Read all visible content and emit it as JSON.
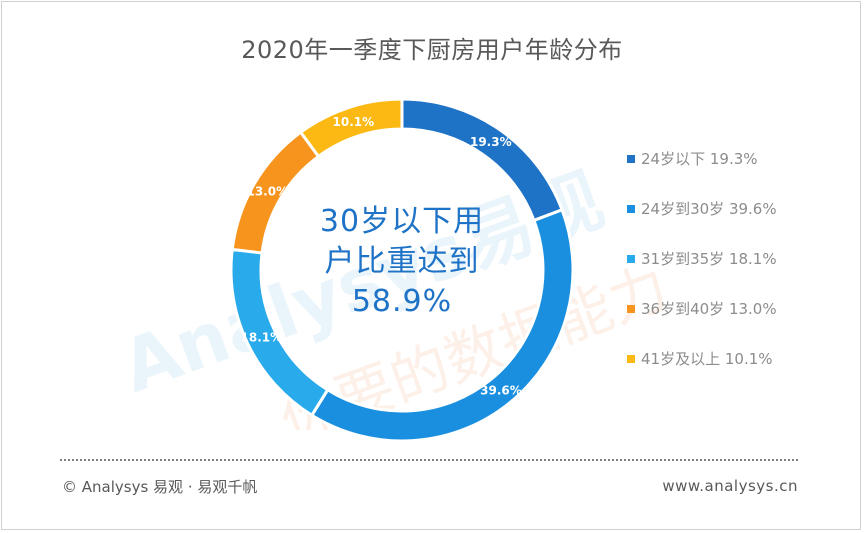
{
  "title": "2020年一季度下厨房用户年龄分布",
  "center_text": {
    "line1": "30岁以下用",
    "line2": "户比重达到",
    "line3": "58.9%"
  },
  "chart_data": {
    "type": "pie",
    "variant": "donut",
    "title": "2020年一季度下厨房用户年龄分布",
    "unit": "%",
    "categories": [
      "24岁以下",
      "24岁到30岁",
      "31岁到35岁",
      "36岁到40岁",
      "41岁及以上"
    ],
    "values": [
      19.3,
      39.6,
      18.1,
      13.0,
      10.1
    ],
    "slice_labels": [
      "19.3%",
      "39.6%",
      "18.1%",
      "13.0%",
      "10.1%"
    ],
    "legend_labels": [
      "24岁以下 19.3%",
      "24岁到30岁 39.6%",
      "31岁到35岁 18.1%",
      "36岁到40岁 13.0%",
      "41岁及以上 10.1%"
    ],
    "colors": [
      "#1f73c7",
      "#1a8fdf",
      "#28aaeb",
      "#f7941d",
      "#fdb913"
    ],
    "legend_position": "right",
    "start_angle": "top, clockwise"
  },
  "watermark": {
    "logo_text": "Analysys易观",
    "slogan": "你要的数据能力",
    "color": "#8ec9ee"
  },
  "footer": {
    "left": "© Analysys 易观 · 易观千帆",
    "right": "www.analysys.cn"
  }
}
